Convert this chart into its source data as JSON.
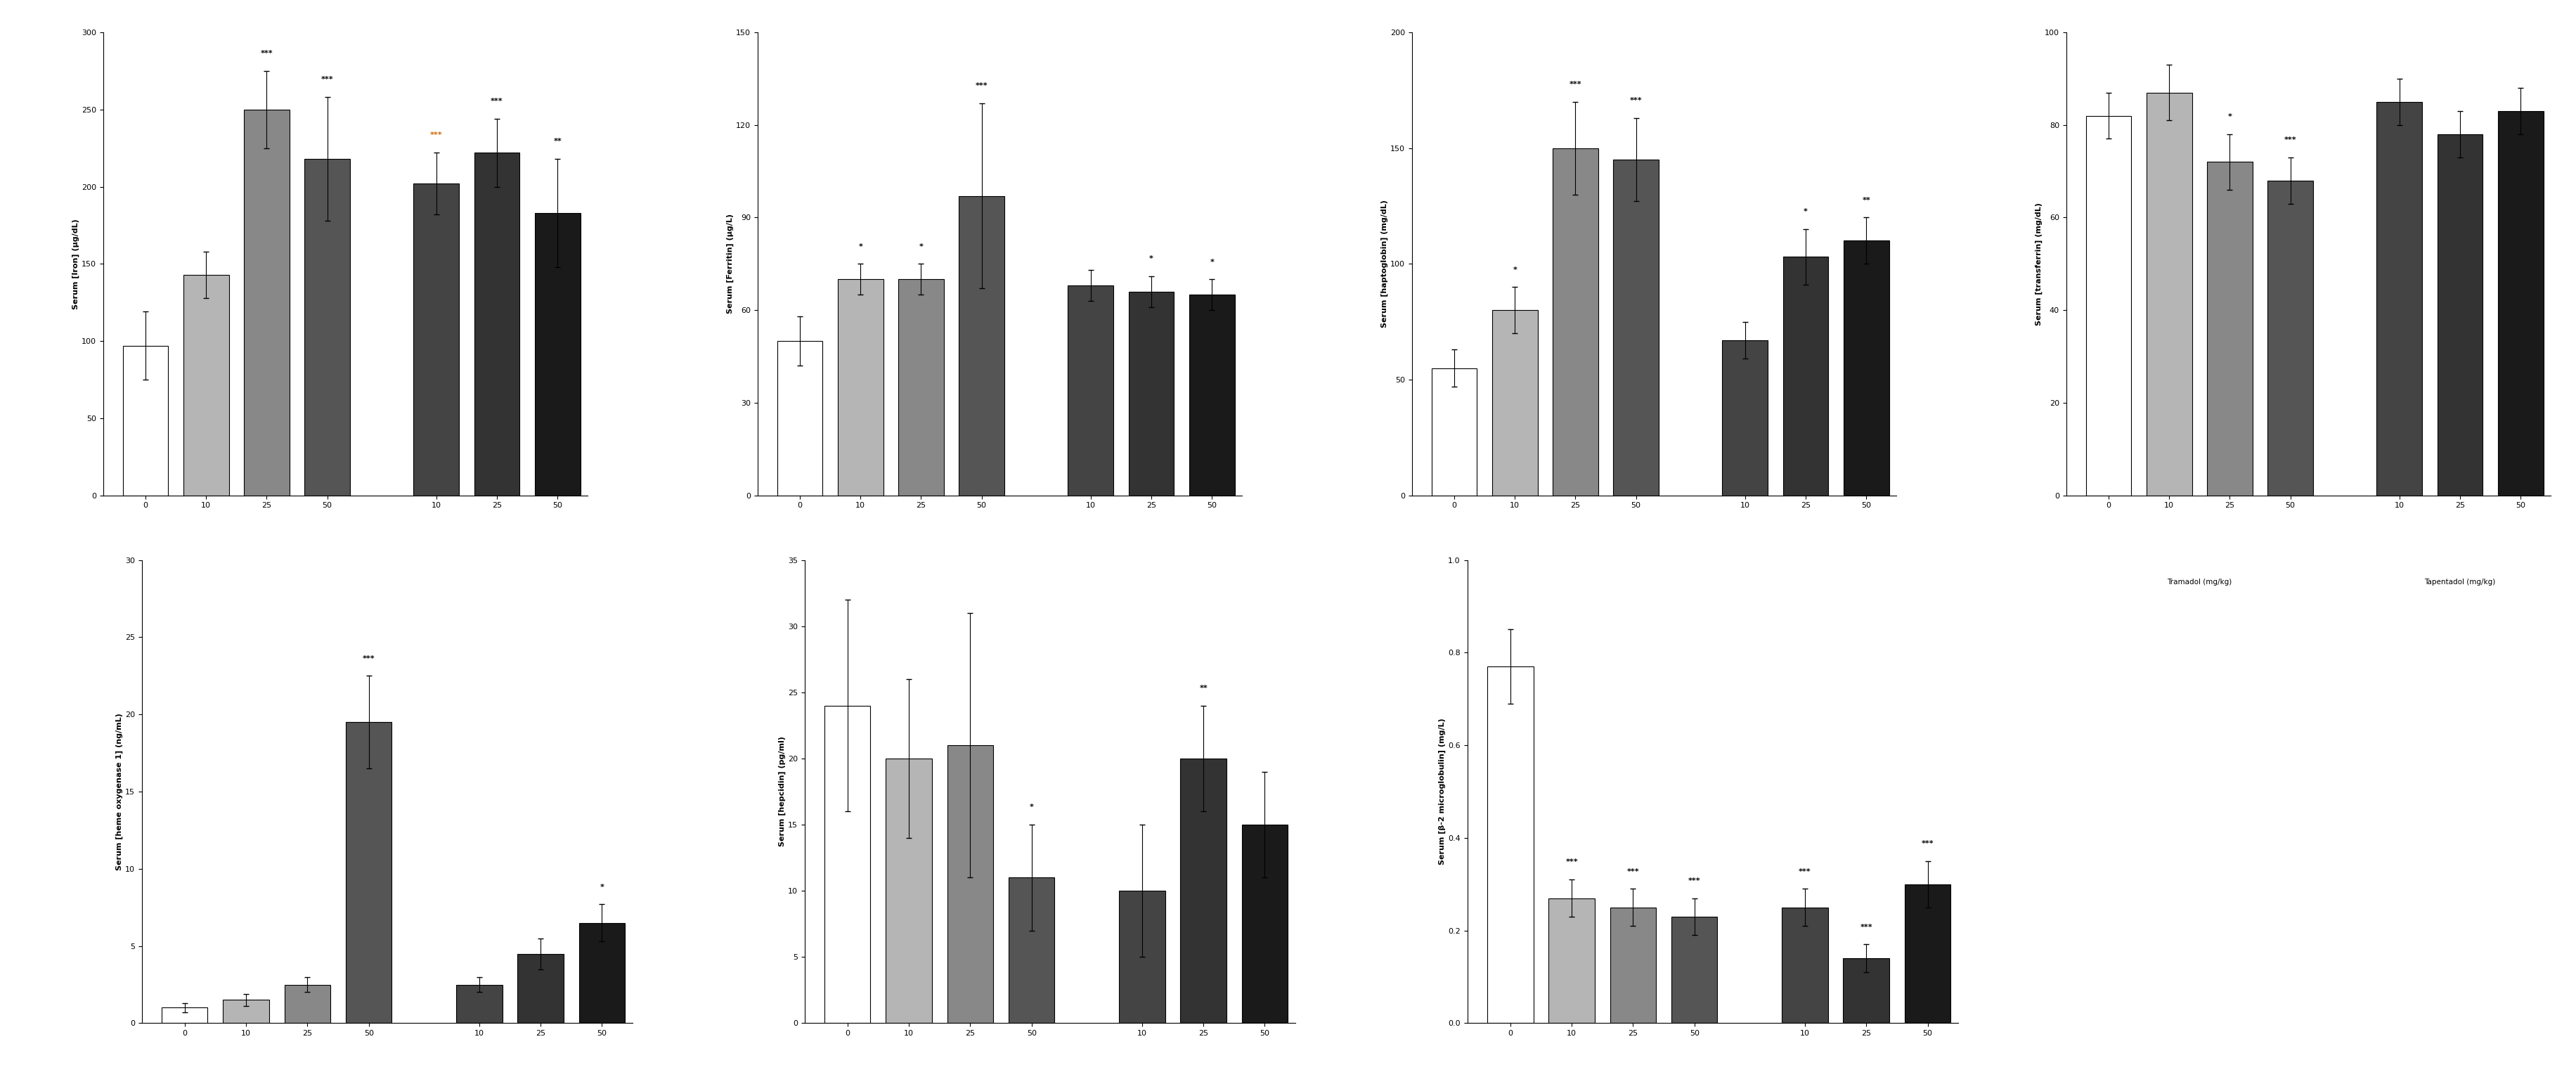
{
  "panels": [
    {
      "ylabel": "Serum [Iron] (μg/dL)",
      "ylim": [
        0,
        300
      ],
      "yticks": [
        0,
        50,
        100,
        150,
        200,
        250,
        300
      ],
      "groups": [
        "Tramadol",
        "Tapentadol"
      ],
      "doses": [
        "0",
        "10",
        "25",
        "50"
      ],
      "values": [
        97,
        143,
        250,
        218,
        202,
        222,
        183
      ],
      "errors": [
        22,
        15,
        25,
        40,
        20,
        22,
        35
      ],
      "sig": [
        "",
        "",
        "***",
        "***",
        "***",
        "***",
        "**"
      ],
      "colors": [
        "#ffffff",
        "#aaaaaa",
        "#888888",
        "#666666",
        "#555555",
        "#444444",
        "#333333"
      ]
    },
    {
      "ylabel": "Serum [Ferritin] (μg/L)",
      "ylim": [
        0,
        150
      ],
      "yticks": [
        0,
        30,
        60,
        90,
        120,
        150
      ],
      "groups": [
        "Tramadol",
        "Tapentadol"
      ],
      "doses": [
        "0",
        "10",
        "25",
        "50"
      ],
      "values": [
        50,
        70,
        70,
        97,
        68,
        66,
        65
      ],
      "errors": [
        8,
        5,
        5,
        30,
        5,
        5,
        5
      ],
      "sig": [
        "",
        "*",
        "*",
        "***",
        "",
        "*",
        "*"
      ],
      "colors": [
        "#ffffff",
        "#aaaaaa",
        "#888888",
        "#666666",
        "#555555",
        "#444444",
        "#333333"
      ]
    },
    {
      "ylabel": "Serum [haptoglobin] (mg/dL)",
      "ylim": [
        0,
        200
      ],
      "yticks": [
        0,
        50,
        100,
        150,
        200
      ],
      "groups": [
        "Tramadol",
        "Tapentadol"
      ],
      "doses": [
        "0",
        "10",
        "25",
        "50"
      ],
      "values": [
        55,
        80,
        150,
        145,
        67,
        103,
        110
      ],
      "errors": [
        8,
        10,
        20,
        18,
        8,
        12,
        10
      ],
      "sig": [
        "",
        "*",
        "***",
        "***",
        "",
        "*",
        "**"
      ],
      "colors": [
        "#ffffff",
        "#aaaaaa",
        "#888888",
        "#666666",
        "#555555",
        "#444444",
        "#333333"
      ]
    },
    {
      "ylabel": "Serum [transferrin] (mg/dL)",
      "ylim": [
        0,
        100
      ],
      "yticks": [
        0,
        20,
        40,
        60,
        80,
        100
      ],
      "groups": [
        "Tramadol",
        "Tapentadol"
      ],
      "doses": [
        "0",
        "10",
        "25",
        "50"
      ],
      "values": [
        82,
        87,
        72,
        68,
        85,
        78,
        83
      ],
      "errors": [
        5,
        6,
        6,
        5,
        5,
        5,
        5
      ],
      "sig": [
        "",
        "",
        "*",
        "***",
        "",
        "",
        ""
      ],
      "colors": [
        "#ffffff",
        "#aaaaaa",
        "#888888",
        "#666666",
        "#555555",
        "#444444",
        "#333333"
      ]
    },
    {
      "ylabel": "Serum [heme oxygenase 1] (ng/mL)",
      "ylim": [
        0,
        30
      ],
      "yticks": [
        0,
        5,
        10,
        15,
        20,
        25,
        30
      ],
      "groups": [
        "Tramadol",
        "Tapentadol"
      ],
      "doses": [
        "0",
        "10",
        "25",
        "50"
      ],
      "values": [
        1.0,
        1.5,
        2.5,
        19.5,
        2.5,
        4.5,
        6.5
      ],
      "errors": [
        0.3,
        0.4,
        0.5,
        3.0,
        0.5,
        1.0,
        1.2
      ],
      "sig": [
        "",
        "",
        "",
        "***",
        "",
        "",
        "*"
      ],
      "colors": [
        "#ffffff",
        "#aaaaaa",
        "#888888",
        "#666666",
        "#555555",
        "#444444",
        "#333333"
      ]
    },
    {
      "ylabel": "Serum [hepcidin] (pg/ml)",
      "ylim": [
        0,
        35
      ],
      "yticks": [
        0,
        5,
        10,
        15,
        20,
        25,
        30,
        35
      ],
      "groups": [
        "Tramadol",
        "Tapentadol"
      ],
      "doses": [
        "0",
        "10",
        "25",
        "50"
      ],
      "values": [
        24,
        20,
        21,
        11,
        10,
        20,
        15
      ],
      "errors": [
        8,
        6,
        10,
        4,
        5,
        4,
        4
      ],
      "sig": [
        "",
        "",
        "",
        "*",
        "",
        "**",
        ""
      ],
      "colors": [
        "#ffffff",
        "#aaaaaa",
        "#888888",
        "#666666",
        "#555555",
        "#444444",
        "#333333"
      ]
    },
    {
      "ylabel": "Serum [β-2 microglobulin] (mg/L)",
      "ylim": [
        0,
        1.0
      ],
      "yticks": [
        0,
        0.2,
        0.4,
        0.6,
        0.8,
        1.0
      ],
      "groups": [
        "Tramadol",
        "Tapentadol"
      ],
      "doses": [
        "0",
        "10",
        "25",
        "50"
      ],
      "values": [
        0.77,
        0.27,
        0.25,
        0.23,
        0.25,
        0.14,
        0.3
      ],
      "errors": [
        0.08,
        0.04,
        0.04,
        0.04,
        0.04,
        0.03,
        0.05
      ],
      "sig": [
        "",
        "***",
        "***",
        "***",
        "***",
        "***",
        "***"
      ],
      "colors": [
        "#ffffff",
        "#aaaaaa",
        "#888888",
        "#666666",
        "#555555",
        "#444444",
        "#333333"
      ]
    }
  ],
  "bar_colors": [
    "#ffffff",
    "#b0b0b0",
    "#888888",
    "#555555",
    "#444444",
    "#333333",
    "#1a1a1a"
  ],
  "bar_edgecolor": "#000000",
  "sig_color_black": "#000000",
  "sig_color_orange": "#cc6600",
  "background": "#ffffff",
  "font_family": "Arial",
  "tick_fontsize": 9,
  "label_fontsize": 9,
  "sig_fontsize": 9
}
